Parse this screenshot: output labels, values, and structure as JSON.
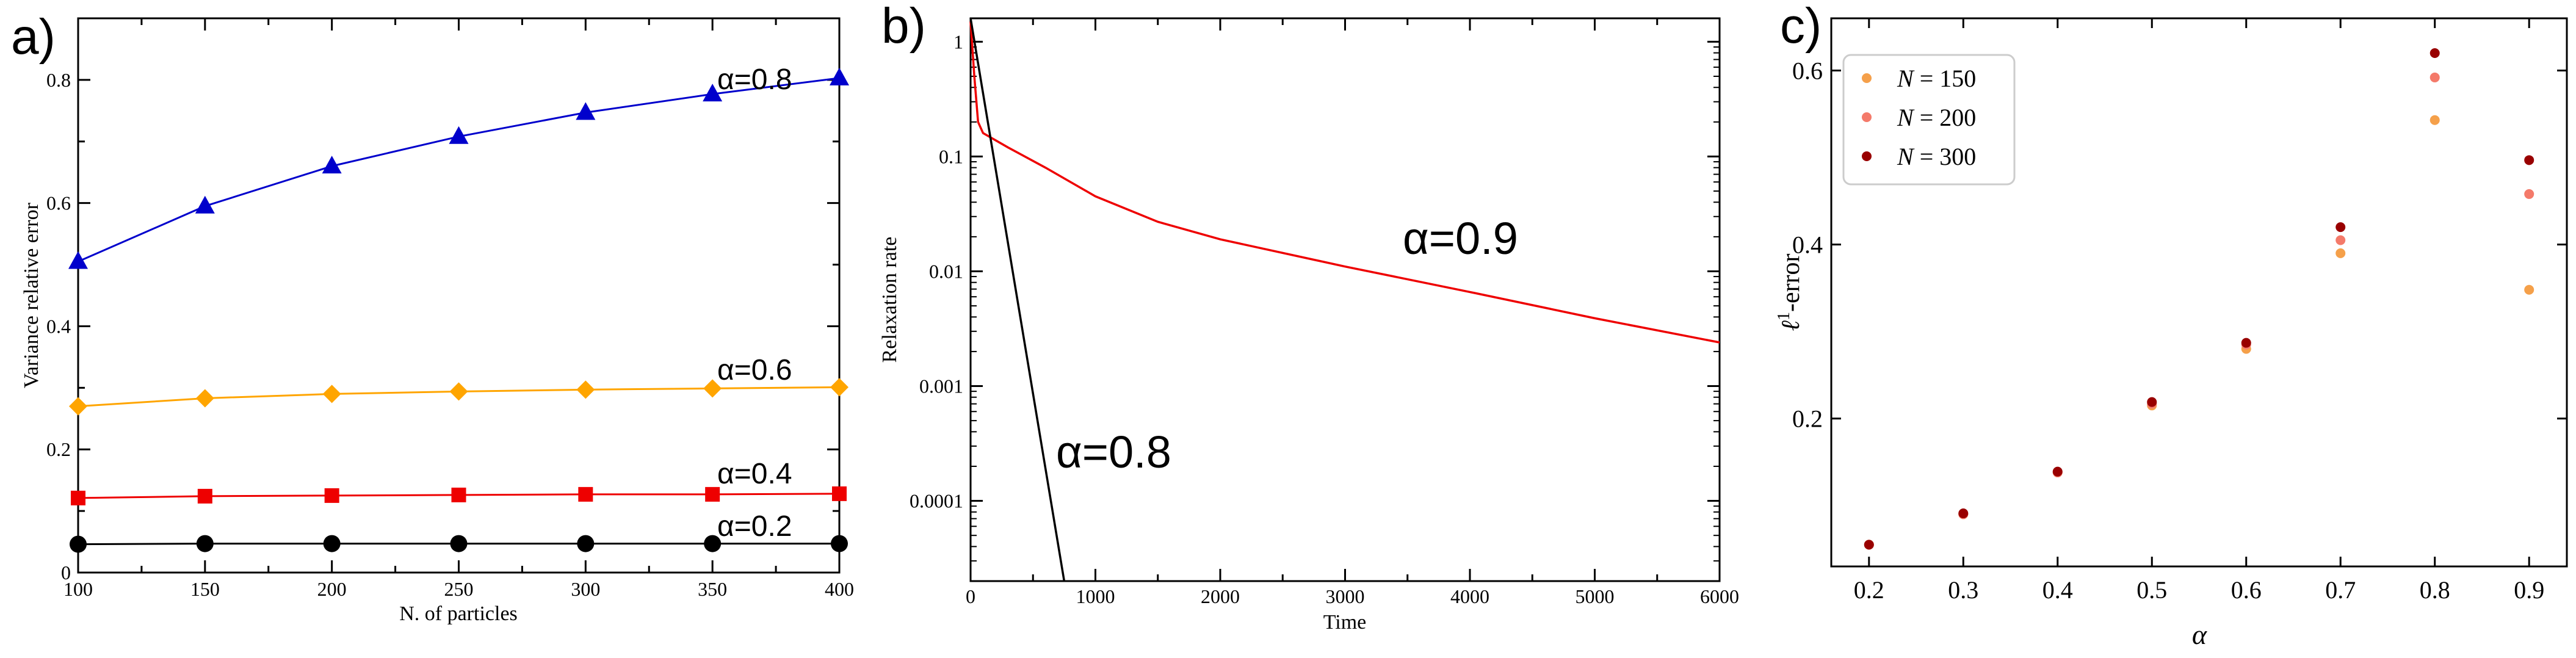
{
  "chart_data": [
    {
      "type": "line",
      "panel_label": "a)",
      "xlabel": "N. of particles",
      "ylabel": "Variance relative error",
      "xlim": [
        100,
        400
      ],
      "ylim": [
        0,
        0.9
      ],
      "xticks": [
        "100",
        "150",
        "200",
        "250",
        "300",
        "350",
        "400"
      ],
      "yticks": [
        "0",
        "0.2",
        "0.4",
        "0.6",
        "0.8"
      ],
      "x": [
        100,
        150,
        200,
        250,
        300,
        350,
        400
      ],
      "series": [
        {
          "name": "α=0.8",
          "color": "#0000cc",
          "marker": "triangle",
          "values": [
            0.505,
            0.595,
            0.66,
            0.708,
            0.747,
            0.777,
            0.803
          ]
        },
        {
          "name": "α=0.6",
          "color": "#ffa500",
          "marker": "diamond",
          "values": [
            0.27,
            0.283,
            0.29,
            0.294,
            0.297,
            0.299,
            0.301
          ]
        },
        {
          "name": "α=0.4",
          "color": "#ee0000",
          "marker": "square",
          "values": [
            0.121,
            0.124,
            0.125,
            0.126,
            0.127,
            0.127,
            0.128
          ]
        },
        {
          "name": "α=0.2",
          "color": "#000000",
          "marker": "circle",
          "values": [
            0.046,
            0.047,
            0.047,
            0.047,
            0.047,
            0.047,
            0.047
          ]
        }
      ],
      "grid": false,
      "legend": "inline labels"
    },
    {
      "type": "line",
      "panel_label": "b)",
      "xlabel": "Time",
      "ylabel": "Relaxation rate",
      "yscale": "log",
      "xlim": [
        0,
        6000
      ],
      "ylim": [
        2e-05,
        1.6
      ],
      "xticks": [
        "0",
        "1000",
        "2000",
        "3000",
        "4000",
        "5000",
        "6000"
      ],
      "yticks": [
        "0.0001",
        "0.001",
        "0.01",
        "0.1",
        "1"
      ],
      "series": [
        {
          "name": "α=0.9",
          "color": "#ee0000",
          "x": [
            0,
            30,
            60,
            100,
            300,
            600,
            1000,
            1500,
            2000,
            3000,
            4000,
            5000,
            6000
          ],
          "values": [
            1.5,
            0.5,
            0.2,
            0.16,
            0.12,
            0.08,
            0.045,
            0.027,
            0.019,
            0.011,
            0.0066,
            0.0039,
            0.0024
          ]
        },
        {
          "name": "α=0.8",
          "color": "#000000",
          "x": [
            0,
            750
          ],
          "values": [
            1.6,
            2e-05
          ]
        }
      ],
      "grid": false,
      "legend": "inline labels"
    },
    {
      "type": "scatter",
      "panel_label": "c)",
      "xlabel": "α",
      "ylabel_main": "ℓ",
      "ylabel_sup": "1",
      "ylabel_rest": "-error",
      "xlim": [
        0.16,
        0.94
      ],
      "ylim": [
        0.03,
        0.66
      ],
      "xticks": [
        "0.2",
        "0.3",
        "0.4",
        "0.5",
        "0.6",
        "0.7",
        "0.8",
        "0.9"
      ],
      "yticks": [
        "0.2",
        "0.4",
        "0.6"
      ],
      "x": [
        0.2,
        0.3,
        0.4,
        0.5,
        0.6,
        0.7,
        0.8,
        0.9
      ],
      "series": [
        {
          "name": "N = 150",
          "label_var": "N",
          "label_val": "= 150",
          "color": "#f5a04a",
          "values": [
            0.055,
            0.09,
            0.138,
            0.215,
            0.28,
            0.39,
            0.543,
            0.348
          ]
        },
        {
          "name": "N = 200",
          "label_var": "N",
          "label_val": "= 200",
          "color": "#f47a6a",
          "values": [
            0.055,
            0.09,
            0.138,
            0.217,
            0.285,
            0.405,
            0.592,
            0.458
          ]
        },
        {
          "name": "N = 300",
          "label_var": "N",
          "label_val": "= 300",
          "color": "#990000",
          "values": [
            0.055,
            0.091,
            0.139,
            0.219,
            0.287,
            0.42,
            0.62,
            0.497
          ]
        }
      ],
      "grid": false,
      "legend": "top-left"
    }
  ]
}
